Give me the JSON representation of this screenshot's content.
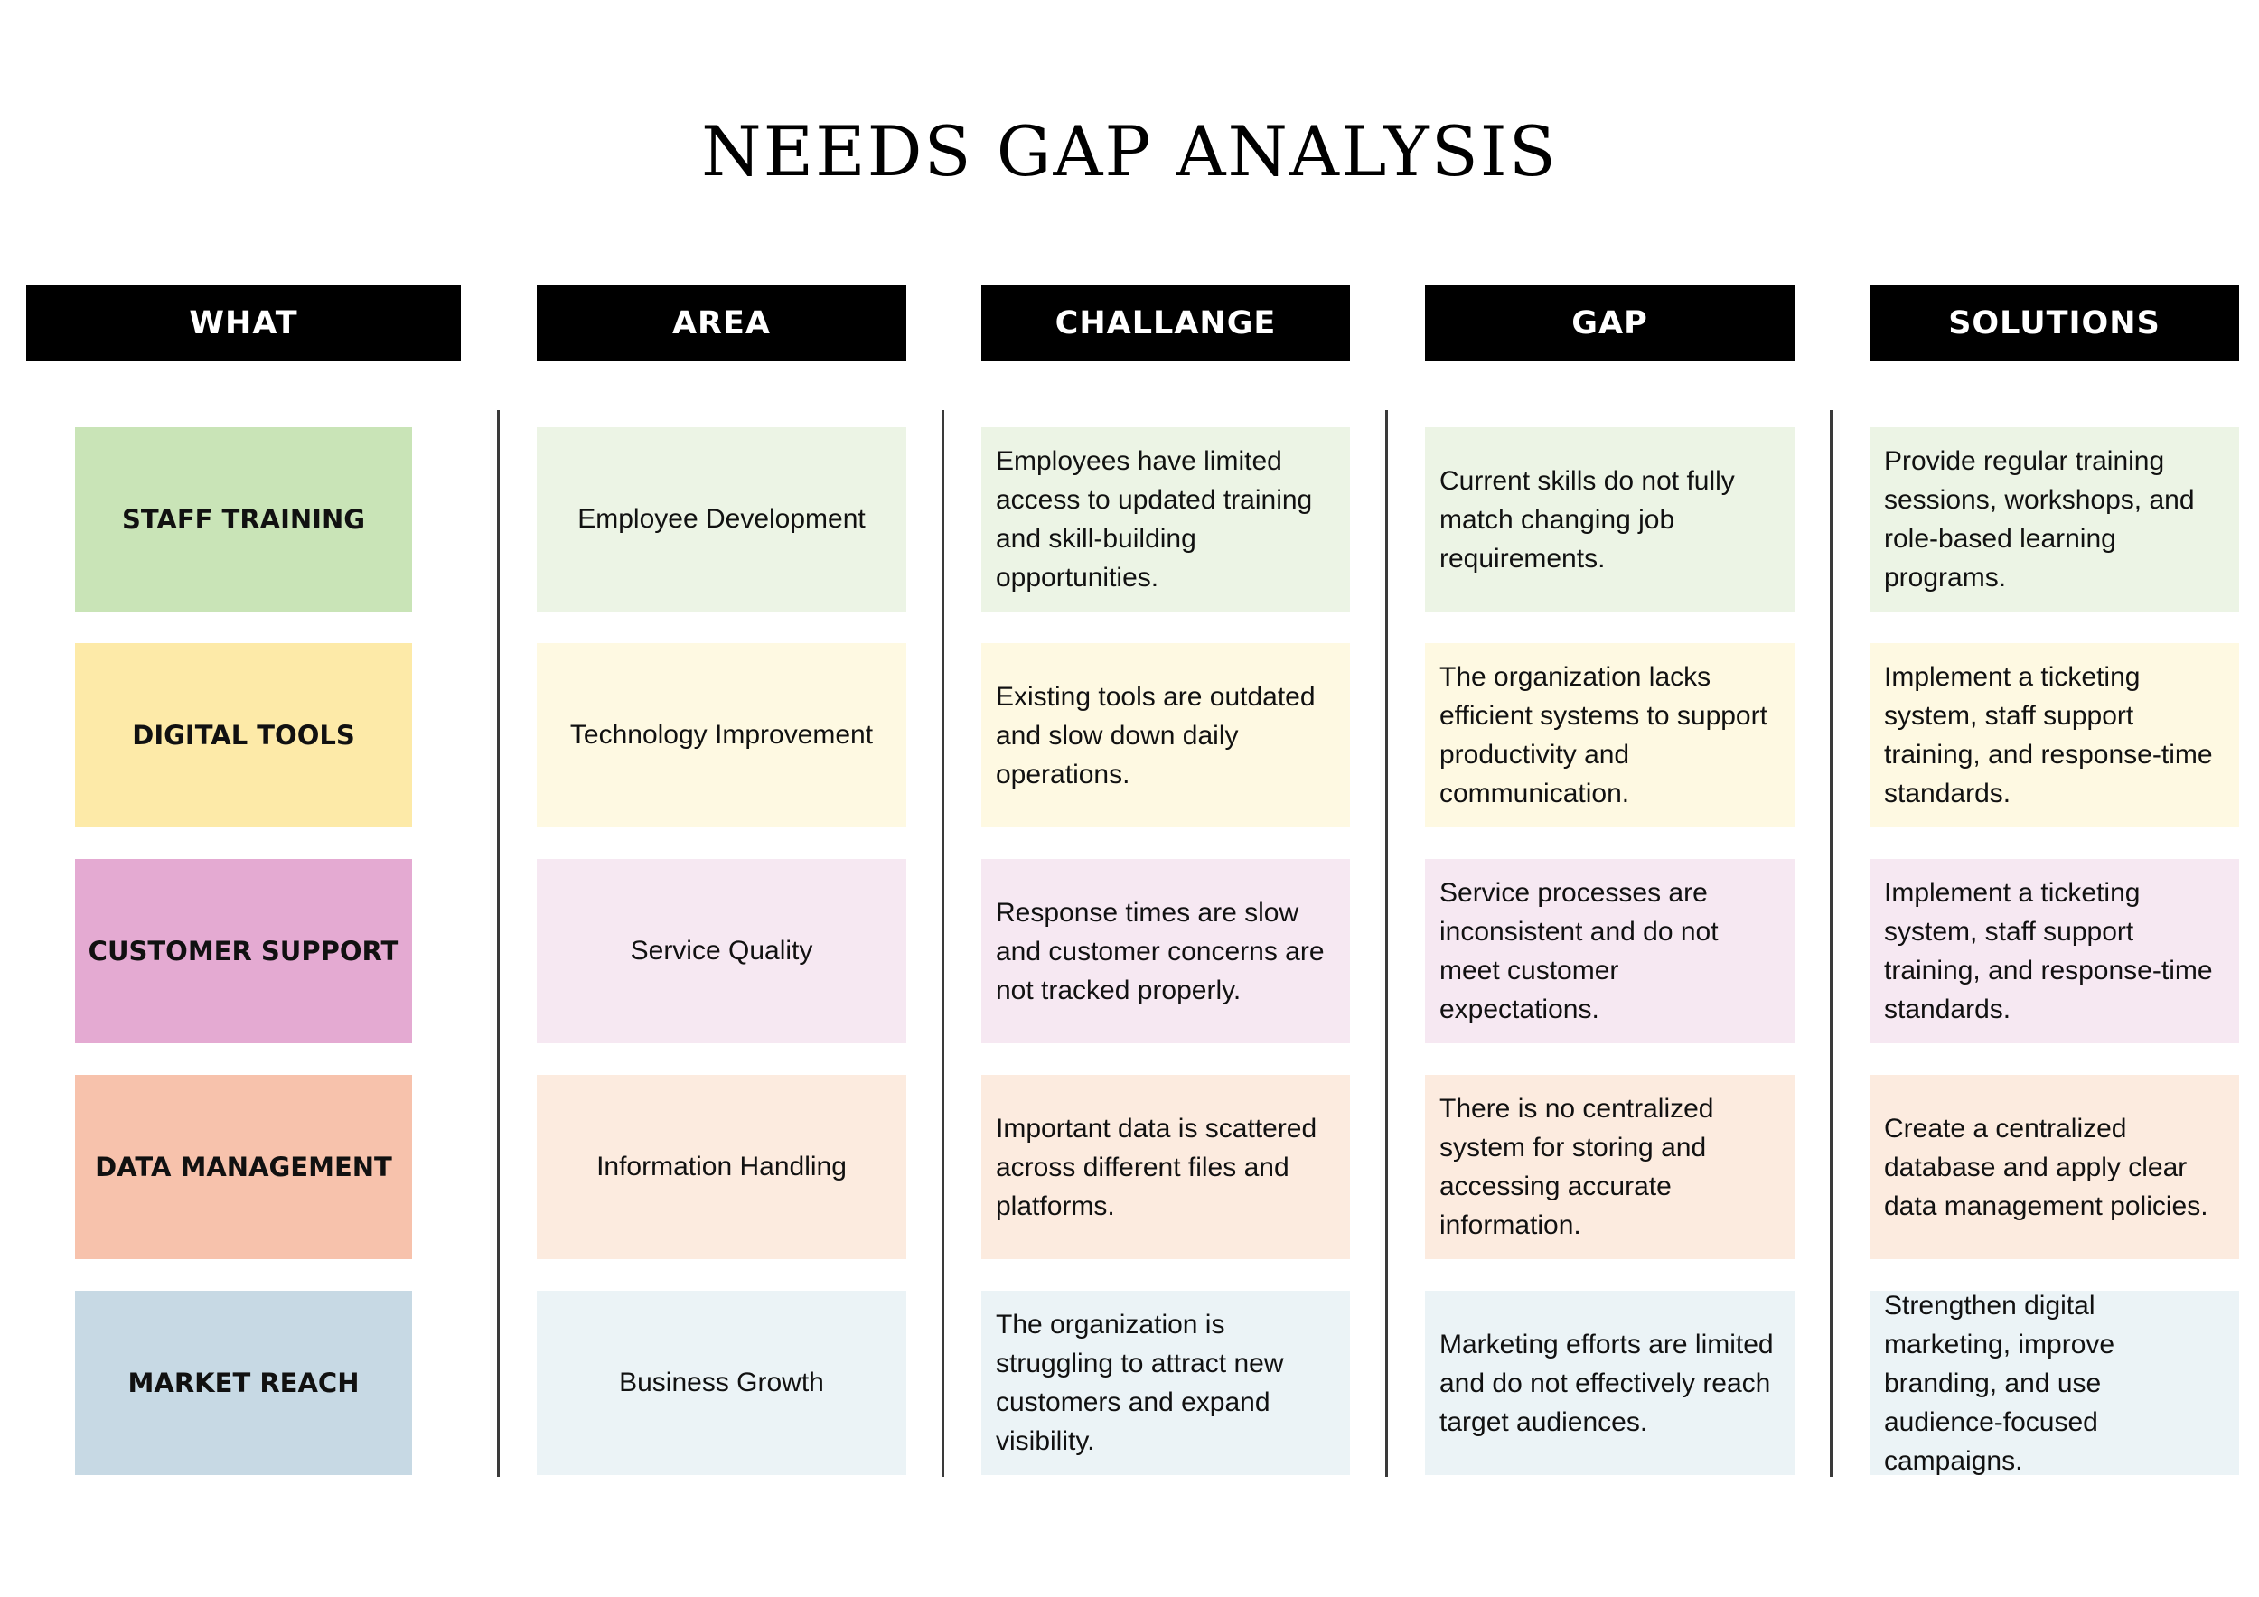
{
  "title": "NEEDS GAP ANALYSIS",
  "headers": {
    "what": "WHAT",
    "area": "AREA",
    "challenge": "CHALLANGE",
    "gap": "GAP",
    "solutions": "SOLUTIONS"
  },
  "rows": [
    {
      "what": "STAFF TRAINING",
      "area": "Employee Development",
      "challenge": "Employees have limited access to updated training and skill-building opportunities.",
      "gap": "Current skills do not fully match changing job requirements.",
      "solutions": "Provide regular training sessions, workshops, and role-based learning programs.",
      "color_strong": "#c9e4b7",
      "color_light": "#ecf4e5"
    },
    {
      "what": "DIGITAL TOOLS",
      "area": "Technology Improvement",
      "challenge": "Existing tools are outdated and slow down daily operations.",
      "gap": "The organization lacks efficient systems to support productivity and communication.",
      "solutions": "Implement a ticketing system, staff support training, and response-time standards.",
      "color_strong": "#fdeaa8",
      "color_light": "#fef9e2"
    },
    {
      "what": "CUSTOMER SUPPORT",
      "area": "Service Quality",
      "challenge": "Response times are slow and customer concerns are not tracked properly.",
      "gap": "Service processes are inconsistent and do not meet customer expectations.",
      "solutions": "Implement a ticketing system, staff support training, and response-time standards.",
      "color_strong": "#e4aad2",
      "color_light": "#f6e8f2"
    },
    {
      "what": "DATA MANAGEMENT",
      "area": "Information Handling",
      "challenge": "Important data is scattered across different files and platforms.",
      "gap": "There is no centralized system for storing and accessing accurate information.",
      "solutions": "Create a centralized database and apply clear data management policies.",
      "color_strong": "#f7c2ac",
      "color_light": "#fcebdf"
    },
    {
      "what": "MARKET REACH",
      "area": "Business Growth",
      "challenge": "The organization is struggling to attract new customers and expand visibility.",
      "gap": "Marketing efforts are limited and do not effectively reach target audiences.",
      "solutions": "Strengthen digital marketing, improve branding, and use audience-focused campaigns.",
      "color_strong": "#c7d9e4",
      "color_light": "#ebf3f6"
    }
  ]
}
